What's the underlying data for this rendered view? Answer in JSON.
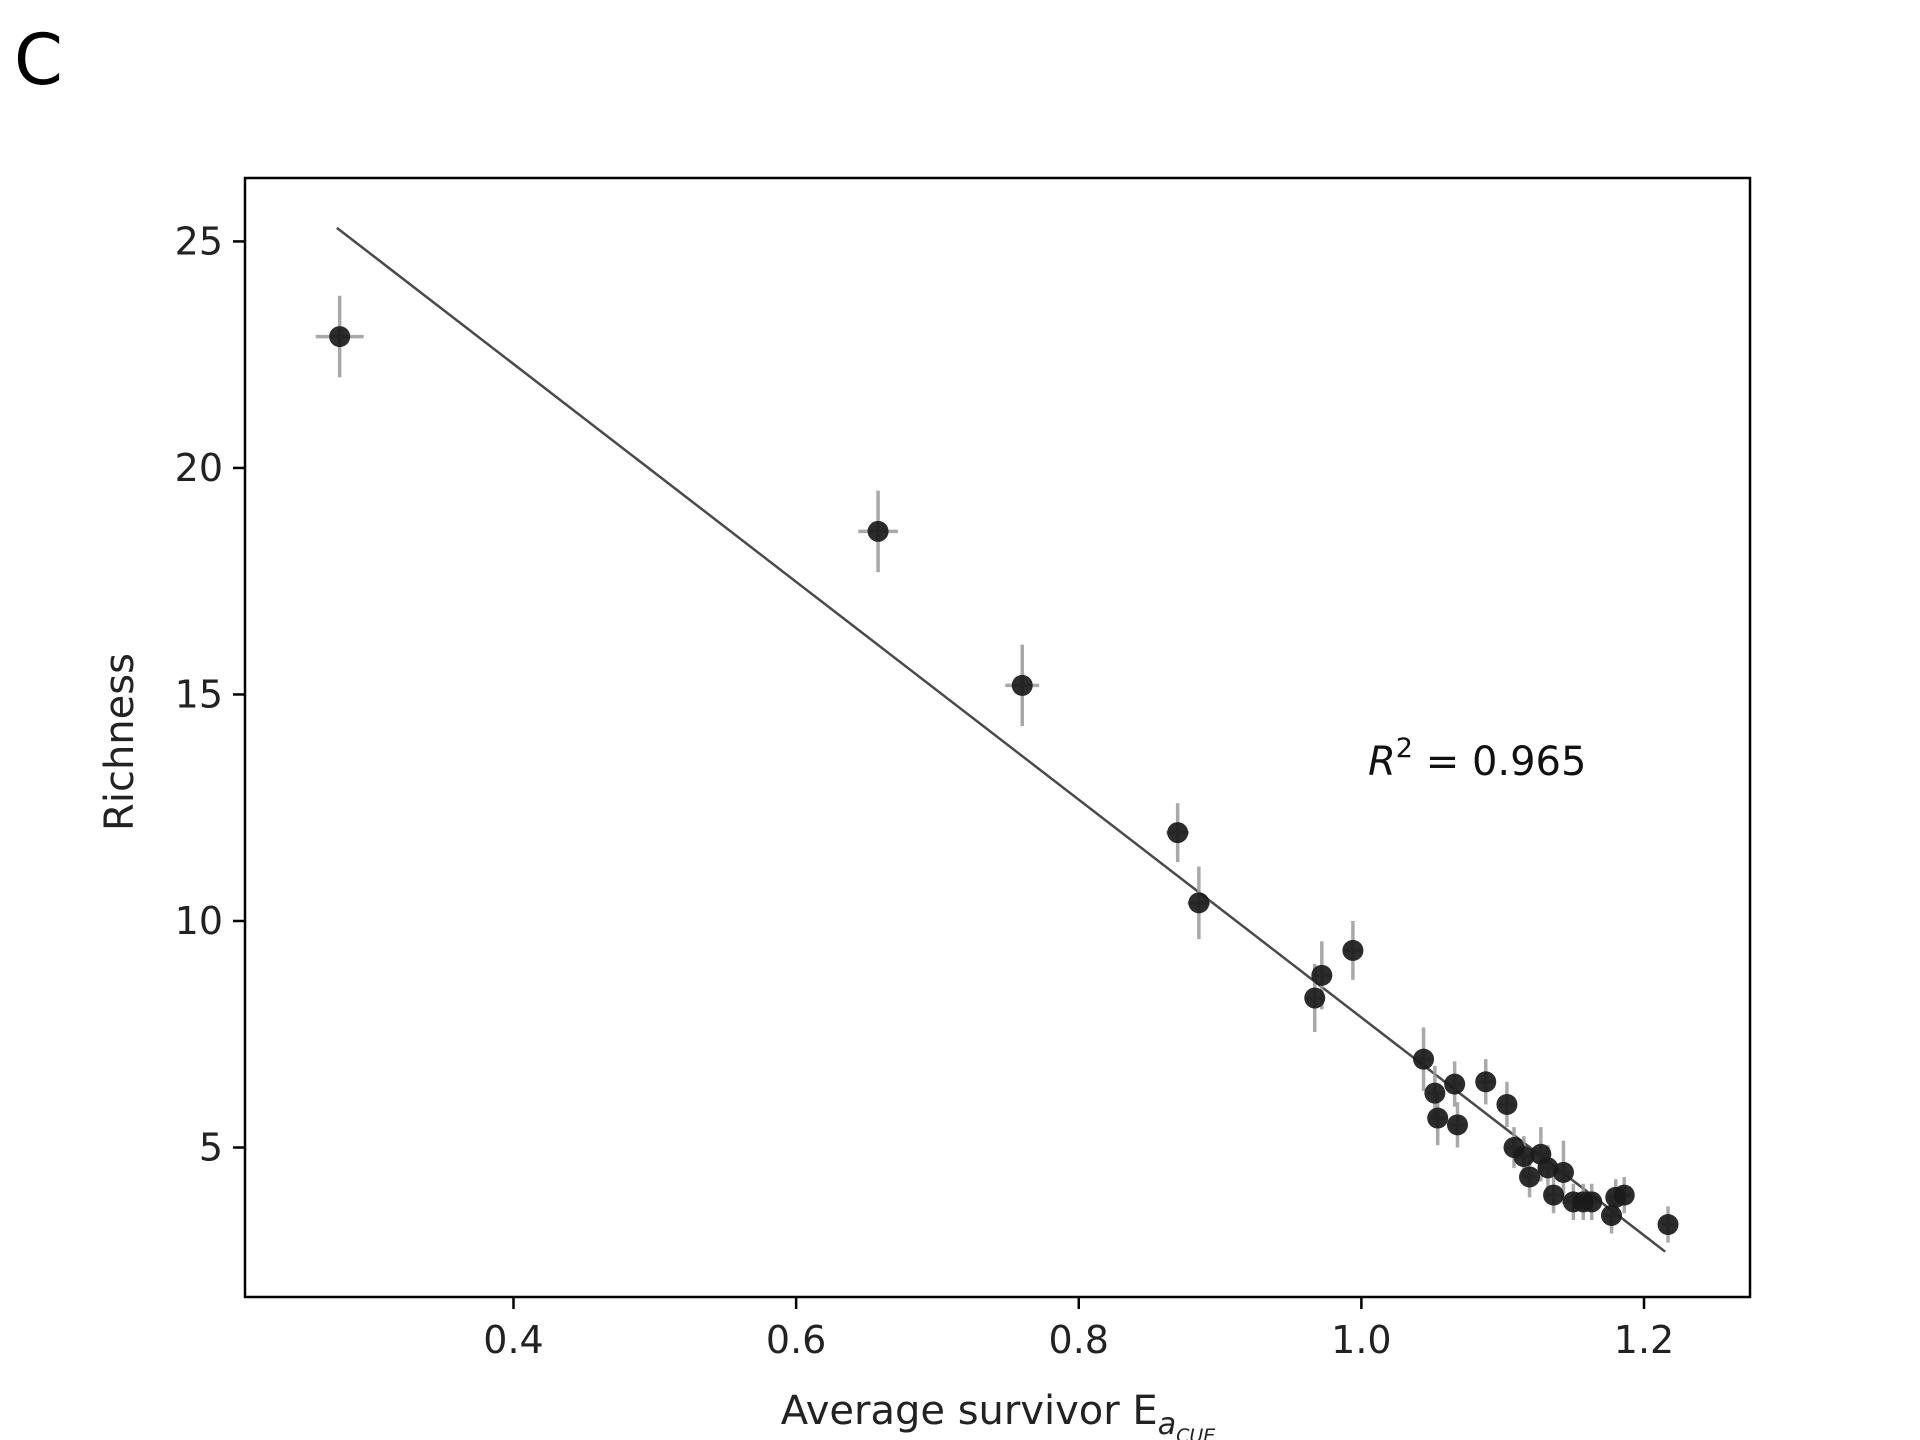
{
  "panel_label": "C",
  "annotation": {
    "symbol": "R",
    "exponent": "2",
    "equals": " = ",
    "value": "0.965"
  },
  "colors": {
    "points": "#1a1a1a",
    "errorbars": "#9a9a9a",
    "fit_line": "#4a4a4a",
    "axes": "#000000"
  },
  "chart_data": {
    "type": "scatter",
    "title": "",
    "xlabel": "Average survivor E",
    "xlabel_subscript": "a",
    "xlabel_subsubscript": "CUE",
    "ylabel": "Richness",
    "xlim": [
      0.21,
      1.275
    ],
    "ylim": [
      1.7,
      26.4
    ],
    "x_ticks": [
      0.4,
      0.6,
      0.8,
      1.0,
      1.2
    ],
    "x_tick_labels": [
      "0.4",
      "0.6",
      "0.8",
      "1.0",
      "1.2"
    ],
    "y_ticks": [
      5,
      10,
      15,
      20,
      25
    ],
    "y_tick_labels": [
      "5",
      "10",
      "15",
      "20",
      "25"
    ],
    "grid": false,
    "fit_line": {
      "x": [
        0.275,
        1.215
      ],
      "y": [
        25.3,
        2.7
      ]
    },
    "points": [
      {
        "x": 0.277,
        "y": 22.9,
        "xerr": 0.017,
        "yerr": 0.9
      },
      {
        "x": 0.658,
        "y": 18.6,
        "xerr": 0.014,
        "yerr": 0.9
      },
      {
        "x": 0.76,
        "y": 15.2,
        "xerr": 0.012,
        "yerr": 0.9
      },
      {
        "x": 0.87,
        "y": 11.95,
        "xerr": 0.008,
        "yerr": 0.65
      },
      {
        "x": 0.885,
        "y": 10.4,
        "xerr": 0.008,
        "yerr": 0.8
      },
      {
        "x": 0.967,
        "y": 8.3,
        "xerr": 0.006,
        "yerr": 0.75
      },
      {
        "x": 0.972,
        "y": 8.8,
        "xerr": 0.006,
        "yerr": 0.75
      },
      {
        "x": 0.994,
        "y": 9.35,
        "xerr": 0.006,
        "yerr": 0.65
      },
      {
        "x": 1.044,
        "y": 6.95,
        "xerr": 0.005,
        "yerr": 0.7
      },
      {
        "x": 1.052,
        "y": 6.2,
        "xerr": 0.005,
        "yerr": 0.6
      },
      {
        "x": 1.054,
        "y": 5.65,
        "xerr": 0.005,
        "yerr": 0.6
      },
      {
        "x": 1.066,
        "y": 6.4,
        "xerr": 0.005,
        "yerr": 0.5
      },
      {
        "x": 1.068,
        "y": 5.5,
        "xerr": 0.005,
        "yerr": 0.5
      },
      {
        "x": 1.088,
        "y": 6.45,
        "xerr": 0.005,
        "yerr": 0.5
      },
      {
        "x": 1.103,
        "y": 5.95,
        "xerr": 0.005,
        "yerr": 0.5
      },
      {
        "x": 1.108,
        "y": 5.0,
        "xerr": 0.005,
        "yerr": 0.45
      },
      {
        "x": 1.115,
        "y": 4.8,
        "xerr": 0.005,
        "yerr": 0.45
      },
      {
        "x": 1.119,
        "y": 4.35,
        "xerr": 0.005,
        "yerr": 0.45
      },
      {
        "x": 1.127,
        "y": 4.85,
        "xerr": 0.005,
        "yerr": 0.6
      },
      {
        "x": 1.132,
        "y": 4.55,
        "xerr": 0.005,
        "yerr": 0.5
      },
      {
        "x": 1.136,
        "y": 3.95,
        "xerr": 0.005,
        "yerr": 0.4
      },
      {
        "x": 1.143,
        "y": 4.45,
        "xerr": 0.005,
        "yerr": 0.7
      },
      {
        "x": 1.15,
        "y": 3.8,
        "xerr": 0.005,
        "yerr": 0.4
      },
      {
        "x": 1.157,
        "y": 3.8,
        "xerr": 0.005,
        "yerr": 0.4
      },
      {
        "x": 1.163,
        "y": 3.8,
        "xerr": 0.005,
        "yerr": 0.4
      },
      {
        "x": 1.177,
        "y": 3.5,
        "xerr": 0.005,
        "yerr": 0.4
      },
      {
        "x": 1.18,
        "y": 3.9,
        "xerr": 0.005,
        "yerr": 0.4
      },
      {
        "x": 1.186,
        "y": 3.95,
        "xerr": 0.005,
        "yerr": 0.4
      },
      {
        "x": 1.217,
        "y": 3.3,
        "xerr": 0.004,
        "yerr": 0.4
      }
    ]
  }
}
